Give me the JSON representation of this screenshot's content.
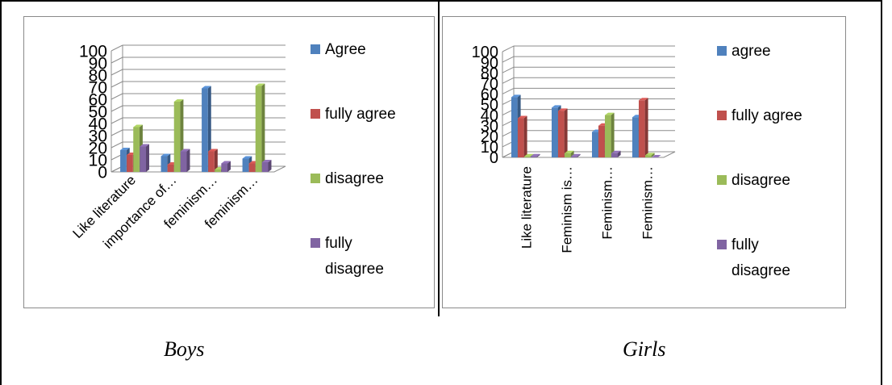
{
  "captions": {
    "boys": "Boys",
    "girls": "Girls"
  },
  "colors": {
    "blue": "#4F81BD",
    "red": "#C0504D",
    "green": "#9BBB59",
    "purple": "#8064A2",
    "grid": "#8c8c8c"
  },
  "chart_data": [
    {
      "id": "boys",
      "type": "bar",
      "style": "3d-clustered-column",
      "title": "",
      "xlabel": "",
      "ylabel": "",
      "ylim": [
        0,
        100
      ],
      "yticks": [
        "0",
        "10",
        "20",
        "30",
        "40",
        "50",
        "60",
        "70",
        "80",
        "90",
        "100"
      ],
      "categories": [
        "Like literature",
        "importance of…",
        "feminism…",
        "feminism…"
      ],
      "legend_position": "right",
      "grid": true,
      "series": [
        {
          "name": "Agree",
          "color": "#4F81BD",
          "values": [
            18,
            13,
            69,
            11
          ]
        },
        {
          "name": "fully agree",
          "color": "#C0504D",
          "values": [
            14,
            6,
            17,
            7
          ]
        },
        {
          "name": "disagree",
          "color": "#9BBB59",
          "values": [
            37,
            58,
            2,
            71
          ]
        },
        {
          "name": "fully disagree",
          "color": "#8064A2",
          "values": [
            21,
            17,
            7,
            8
          ]
        }
      ]
    },
    {
      "id": "girls",
      "type": "bar",
      "style": "3d-clustered-column",
      "title": "",
      "xlabel": "",
      "ylabel": "",
      "ylim": [
        0,
        100
      ],
      "yticks": [
        "0",
        "10",
        "20",
        "30",
        "40",
        "50",
        "60",
        "70",
        "80",
        "90",
        "100"
      ],
      "categories": [
        "Like literature",
        "Feminism is…",
        "Feminism…",
        "Feminism…"
      ],
      "legend_position": "right",
      "grid": true,
      "series": [
        {
          "name": "agree",
          "color": "#4F81BD",
          "values": [
            57,
            47,
            24,
            38
          ]
        },
        {
          "name": "fully agree",
          "color": "#C0504D",
          "values": [
            37,
            44,
            30,
            54
          ]
        },
        {
          "name": "disagree",
          "color": "#9BBB59",
          "values": [
            1,
            4,
            40,
            2
          ]
        },
        {
          "name": "fully disagree",
          "color": "#8064A2",
          "values": [
            1,
            1,
            4,
            0
          ]
        }
      ]
    }
  ]
}
